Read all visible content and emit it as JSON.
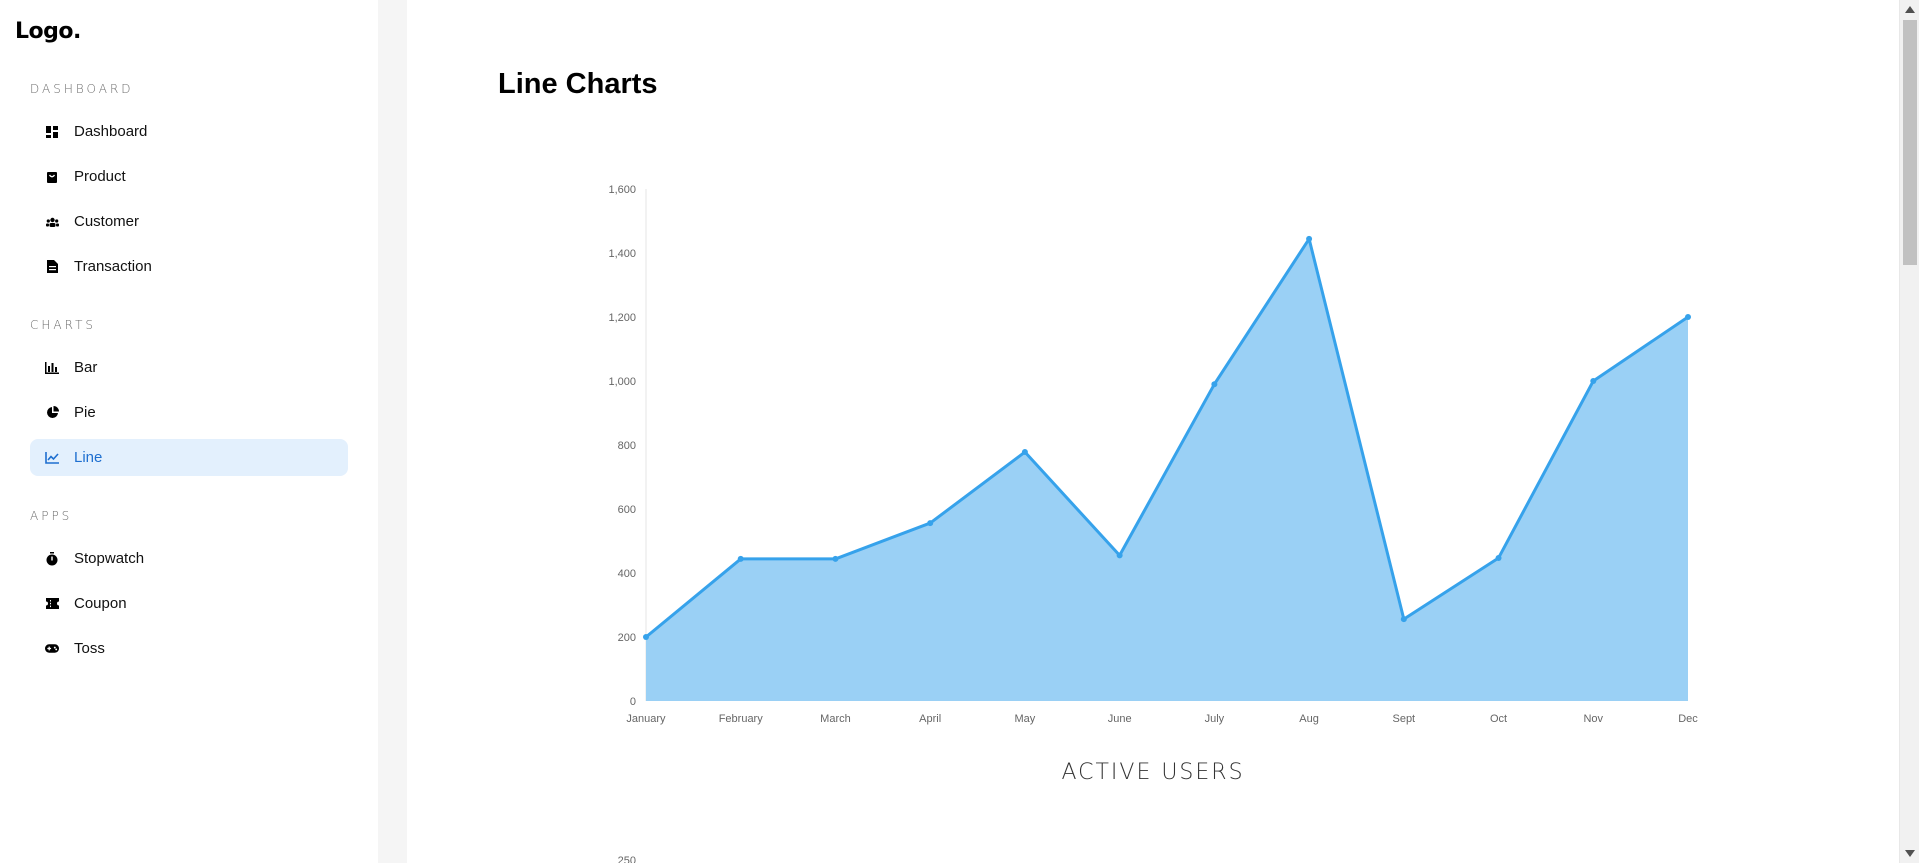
{
  "logo": "Logo.",
  "sidebar": {
    "sections": [
      {
        "title": "DASHBOARD",
        "items": [
          {
            "label": "Dashboard",
            "icon": "dashboard-icon"
          },
          {
            "label": "Product",
            "icon": "bag-icon"
          },
          {
            "label": "Customer",
            "icon": "users-icon"
          },
          {
            "label": "Transaction",
            "icon": "document-icon"
          }
        ]
      },
      {
        "title": "CHARTS",
        "items": [
          {
            "label": "Bar",
            "icon": "bar-chart-icon"
          },
          {
            "label": "Pie",
            "icon": "pie-chart-icon"
          },
          {
            "label": "Line",
            "icon": "line-chart-icon",
            "active": true
          }
        ]
      },
      {
        "title": "APPS",
        "items": [
          {
            "label": "Stopwatch",
            "icon": "stopwatch-icon"
          },
          {
            "label": "Coupon",
            "icon": "coupon-icon"
          },
          {
            "label": "Toss",
            "icon": "gamepad-icon"
          }
        ]
      }
    ]
  },
  "main": {
    "title": "Line Charts"
  },
  "colors": {
    "accent": "#1e6fd0",
    "active_bg": "#e3f0fd",
    "line": "#36a2eb",
    "fill": "#9ad0f5"
  },
  "chart_data": [
    {
      "type": "area",
      "categories": [
        "January",
        "February",
        "March",
        "April",
        "May",
        "June",
        "July",
        "Aug",
        "Sept",
        "Oct",
        "Nov",
        "Dec"
      ],
      "series": [
        {
          "values": [
            200,
            444,
            444,
            556,
            778,
            455,
            990,
            1444,
            256,
            447,
            1000,
            1200
          ]
        }
      ],
      "title": "ACTIVE USERS",
      "xlabel": "",
      "ylabel": "",
      "ylim": [
        0,
        1600
      ],
      "yticks": [
        "0",
        "200",
        "400",
        "600",
        "800",
        "1,000",
        "1,200",
        "1,400",
        "1,600"
      ],
      "grid": false,
      "legend": "none"
    },
    {
      "type": "line",
      "yticks_visible": [
        "250"
      ]
    }
  ]
}
